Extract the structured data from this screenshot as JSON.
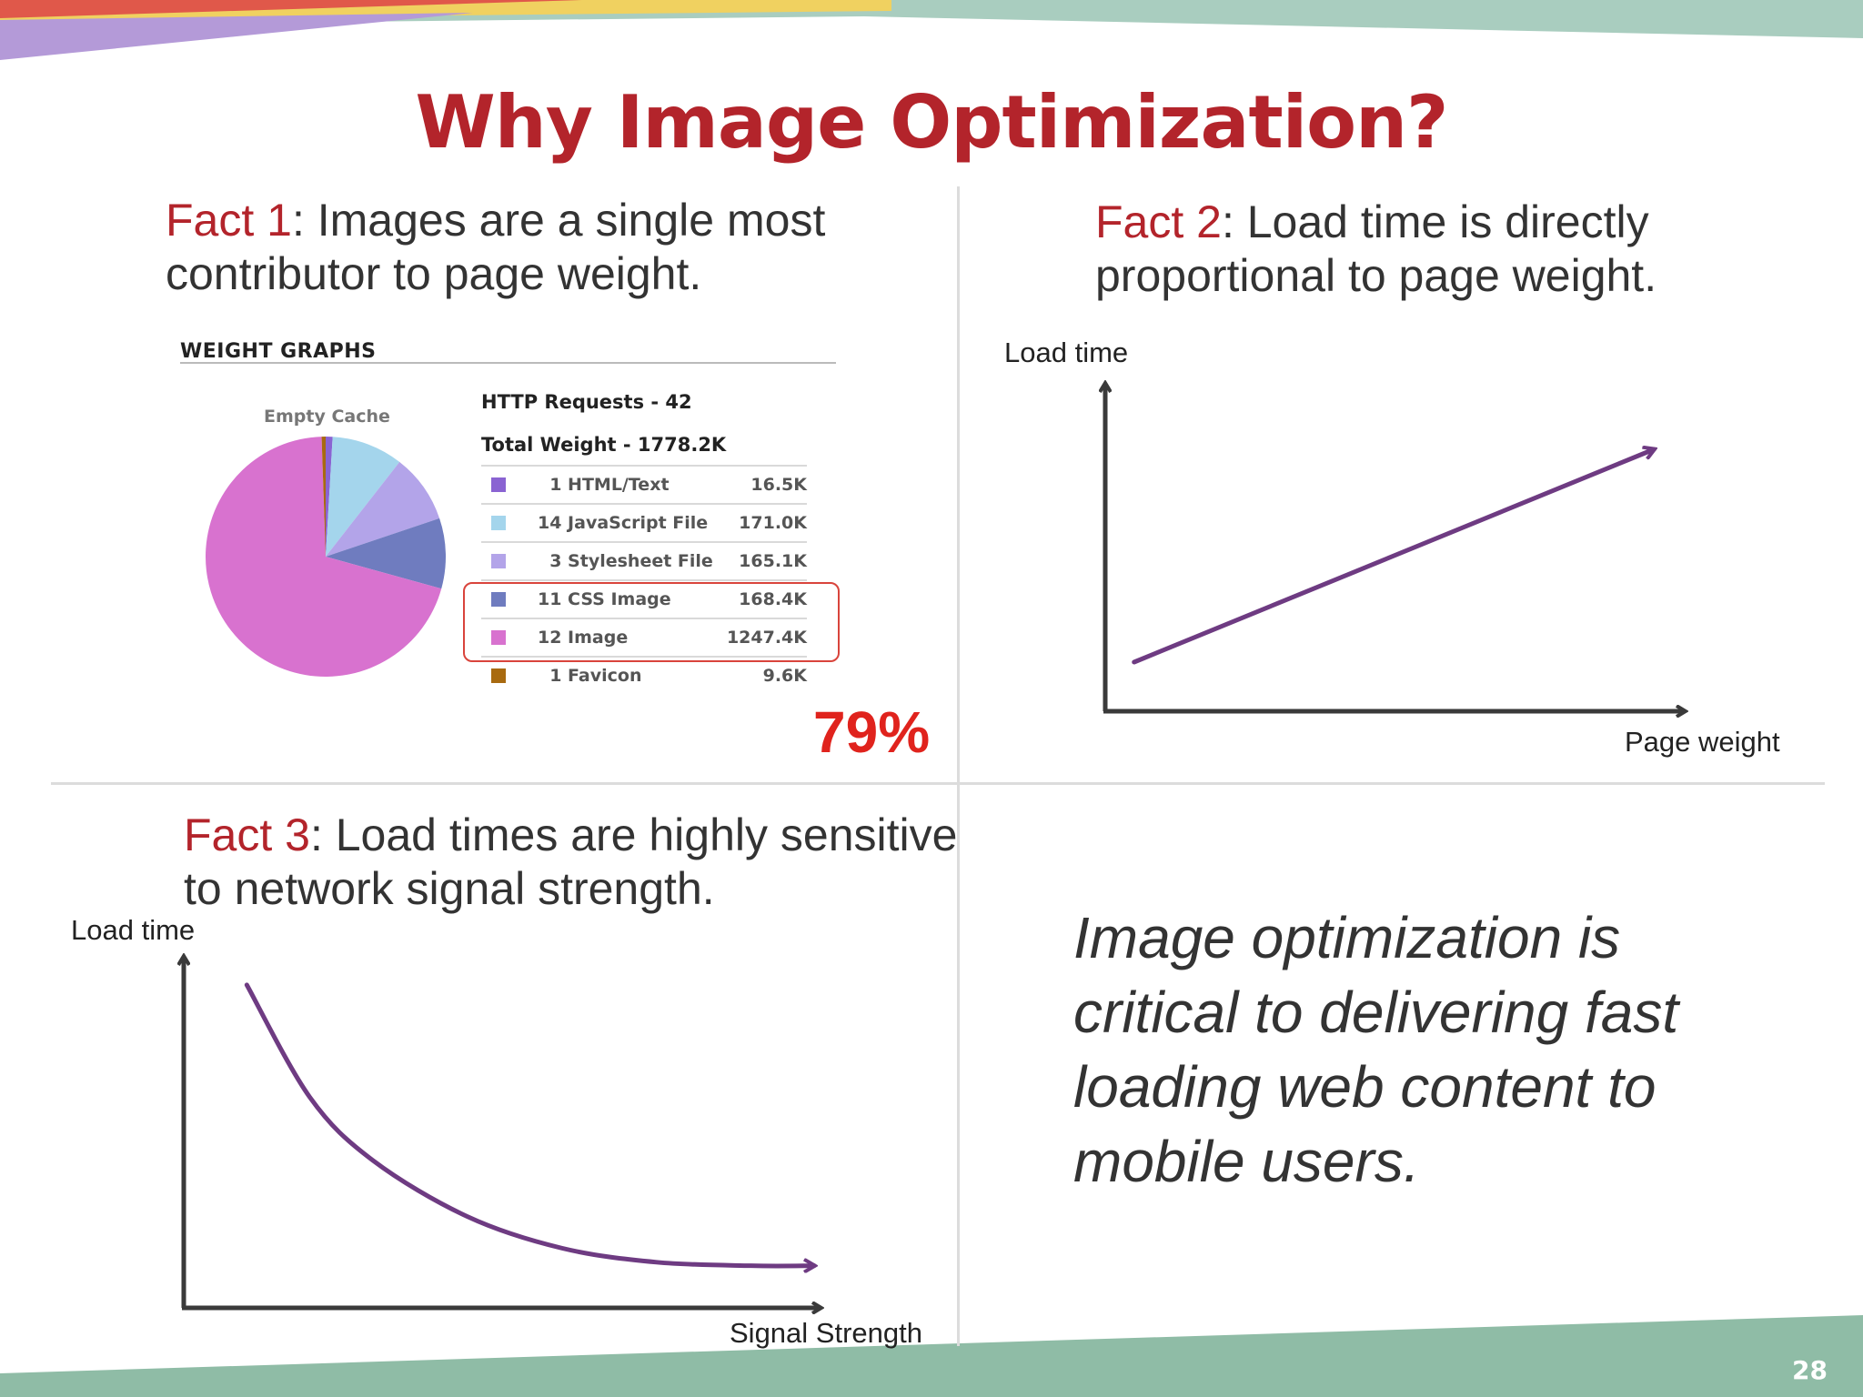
{
  "slide": {
    "title": "Why Image Optimization?",
    "page_number": "28"
  },
  "fact1": {
    "lead": "Fact 1",
    "text": ": Images are a single most contributor to page weight."
  },
  "fact2": {
    "lead": "Fact 2",
    "text": ": Load time is directly proportional to page weight."
  },
  "fact3": {
    "lead": "Fact 3",
    "text": ": Load times are highly sensitive to network signal strength."
  },
  "weight_graph": {
    "header": "WEIGHT GRAPHS",
    "cache_label": "Empty Cache",
    "requests": "HTTP Requests - 42",
    "total_weight": "Total Weight - 1778.2K",
    "highlight_percent": "79%"
  },
  "chart_data": [
    {
      "type": "pie",
      "title": "Empty Cache",
      "slices": [
        {
          "label": "HTML/Text",
          "count": 1,
          "value": 16.5,
          "display": "16.5K",
          "color": "#8a63d2"
        },
        {
          "label": "JavaScript File",
          "count": 14,
          "value": 171.0,
          "display": "171.0K",
          "color": "#a4d5ec"
        },
        {
          "label": "Stylesheet File",
          "count": 3,
          "value": 165.1,
          "display": "165.1K",
          "color": "#b3a4e9"
        },
        {
          "label": "CSS Image",
          "count": 11,
          "value": 168.4,
          "display": "168.4K",
          "color": "#6f7cbf"
        },
        {
          "label": "Image",
          "count": 12,
          "value": 1247.4,
          "display": "1247.4K",
          "color": "#d872cf"
        },
        {
          "label": "Favicon",
          "count": 1,
          "value": 9.6,
          "display": "9.6K",
          "color": "#a86a10"
        }
      ]
    },
    {
      "type": "line",
      "xlabel": "Page weight",
      "ylabel": "Load time",
      "x": [
        0.05,
        0.95
      ],
      "y": [
        0.15,
        0.8
      ],
      "color": "#6e3b82"
    },
    {
      "type": "line",
      "xlabel": "Signal Strength",
      "ylabel": "Load time",
      "x": [
        0.1,
        0.2,
        0.3,
        0.45,
        0.6,
        0.75,
        0.9,
        1.0
      ],
      "y": [
        0.92,
        0.6,
        0.42,
        0.26,
        0.17,
        0.13,
        0.12,
        0.12
      ],
      "color": "#6e3b82"
    }
  ],
  "conclusion": "Image optimization is critical to delivering fast loading web content to mobile users.",
  "colors": {
    "accent_red": "#b3242b",
    "percent_red": "#e0231d",
    "curve_purple": "#6e3b82",
    "axis": "#3a3a3a"
  }
}
